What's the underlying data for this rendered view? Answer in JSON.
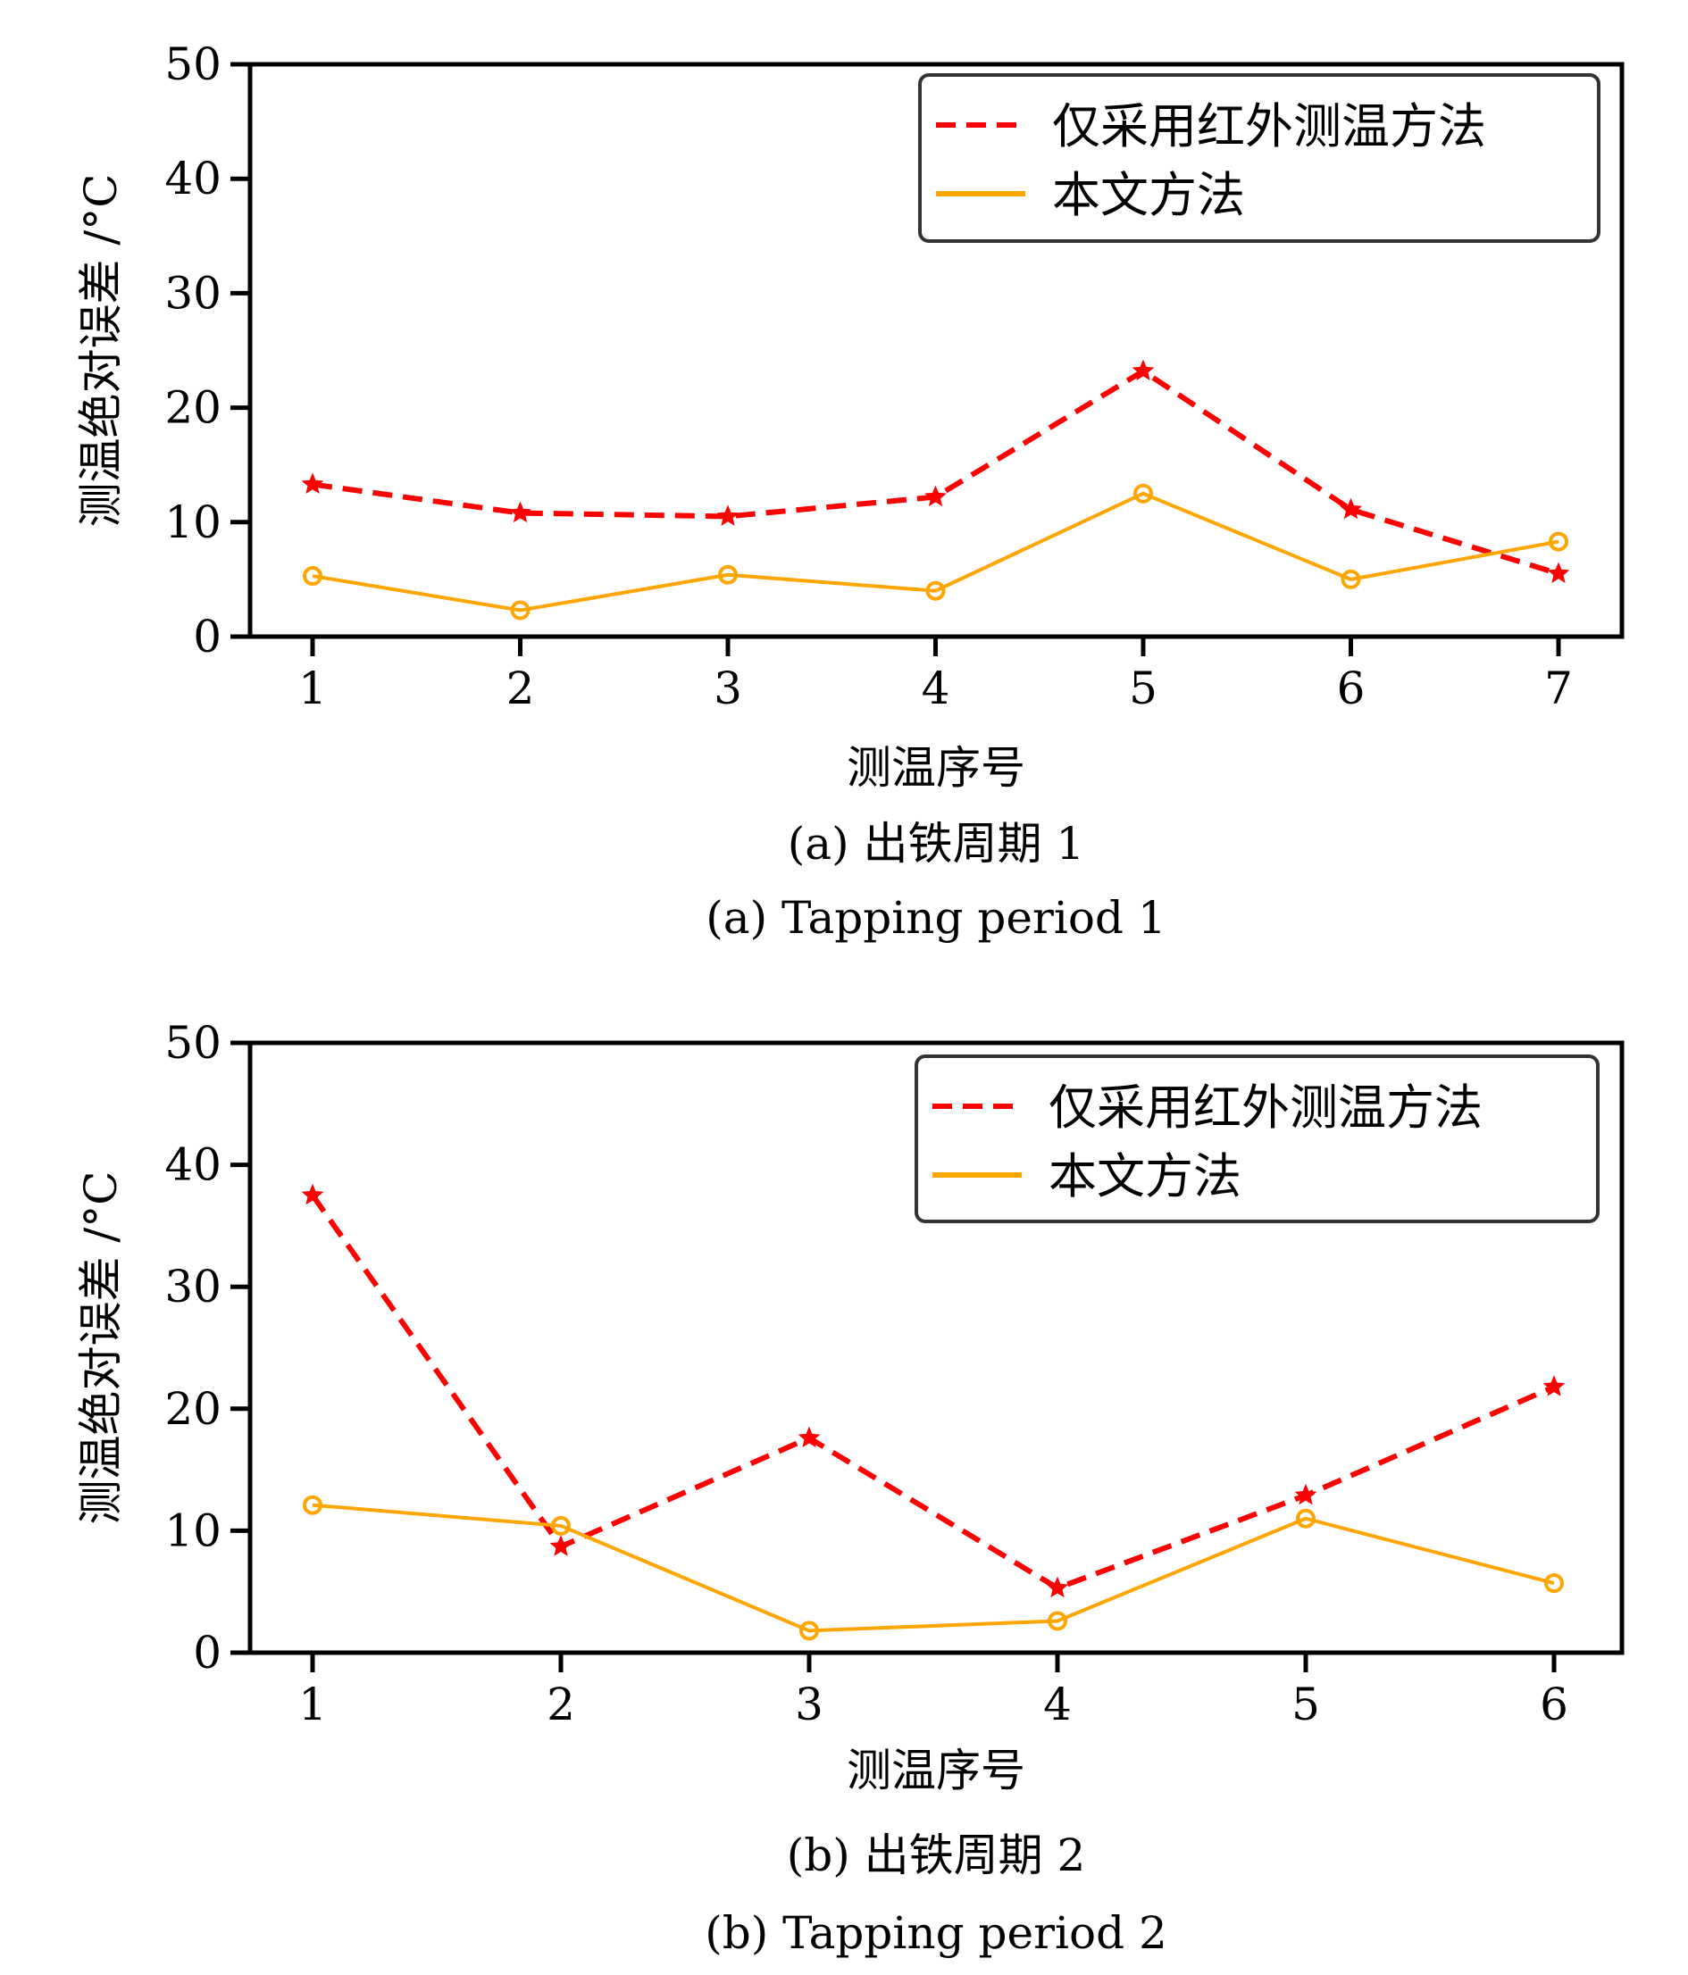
{
  "chart_data": [
    {
      "type": "line",
      "xlabel": "测温序号",
      "ylabel": "测温绝对误差 /°C",
      "caption_cn": "(a) 出铁周期 1",
      "caption_en": "(a) Tapping period 1",
      "x": [
        1,
        2,
        3,
        4,
        5,
        6,
        7
      ],
      "x_tick_labels": [
        "1",
        "2",
        "3",
        "4",
        "5",
        "6",
        "7"
      ],
      "ylim": [
        0,
        50
      ],
      "y_ticks": [
        0,
        10,
        20,
        30,
        40,
        50
      ],
      "y_tick_labels": [
        "0",
        "10",
        "20",
        "30",
        "40",
        "50"
      ],
      "grid": false,
      "legend_position": "top-right",
      "series": [
        {
          "name": "仅采用红外测温方法",
          "color": "#ff0000",
          "style": "dashed",
          "marker": "star",
          "values": [
            13.3,
            10.8,
            10.5,
            12.2,
            23.2,
            11.1,
            5.5
          ]
        },
        {
          "name": "本文方法",
          "color": "#ffa500",
          "style": "solid",
          "marker": "circle",
          "values": [
            5.3,
            2.3,
            5.4,
            4.0,
            12.5,
            5.0,
            8.3
          ]
        }
      ]
    },
    {
      "type": "line",
      "xlabel": "测温序号",
      "ylabel": "测温绝对误差 /°C",
      "caption_cn": "(b) 出铁周期 2",
      "caption_en": "(b) Tapping period 2",
      "x": [
        1,
        2,
        3,
        4,
        5,
        6
      ],
      "x_tick_labels": [
        "1",
        "2",
        "3",
        "4",
        "5",
        "6"
      ],
      "ylim": [
        0,
        50
      ],
      "y_ticks": [
        0,
        10,
        20,
        30,
        40,
        50
      ],
      "y_tick_labels": [
        "0",
        "10",
        "20",
        "30",
        "40",
        "50"
      ],
      "grid": false,
      "legend_position": "top-right",
      "series": [
        {
          "name": "仅采用红外测温方法",
          "color": "#ff0000",
          "style": "dashed",
          "marker": "star",
          "values": [
            37.5,
            8.7,
            17.6,
            5.3,
            12.9,
            21.8
          ]
        },
        {
          "name": "本文方法",
          "color": "#ffa500",
          "style": "solid",
          "marker": "circle",
          "values": [
            12.1,
            10.4,
            1.8,
            2.6,
            11.0,
            5.7
          ]
        }
      ]
    }
  ]
}
